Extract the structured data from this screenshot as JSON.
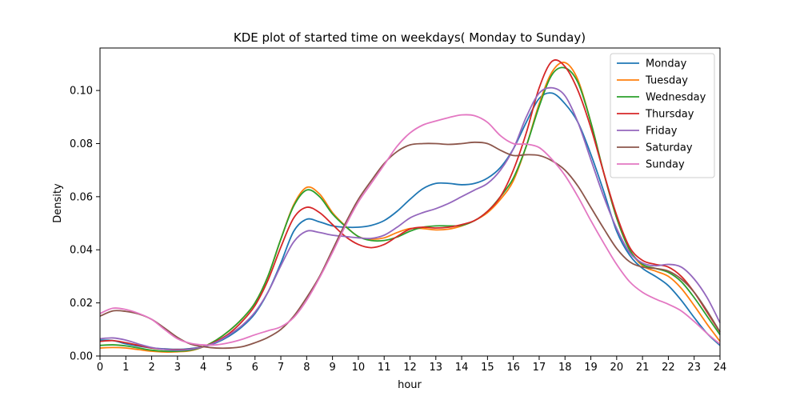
{
  "chart_data": {
    "type": "line",
    "title": "KDE plot of started time on weekdays( Monday to Sunday)",
    "xlabel": "hour",
    "ylabel": "Density",
    "xlim": [
      0,
      24
    ],
    "ylim": [
      0,
      0.116
    ],
    "xticks": [
      0,
      1,
      2,
      3,
      4,
      5,
      6,
      7,
      8,
      9,
      10,
      11,
      12,
      13,
      14,
      15,
      16,
      17,
      18,
      19,
      20,
      21,
      22,
      23,
      24
    ],
    "yticks": [
      0.0,
      0.02,
      0.04,
      0.06,
      0.08,
      0.1
    ],
    "ytick_labels": [
      "0.00",
      "0.02",
      "0.04",
      "0.06",
      "0.08",
      "0.10"
    ],
    "grid": false,
    "legend_position": "top-right",
    "x": [
      0,
      0.5,
      1,
      1.5,
      2,
      2.5,
      3,
      3.5,
      4,
      4.5,
      5,
      5.5,
      6,
      6.5,
      7,
      7.5,
      8,
      8.5,
      9,
      9.5,
      10,
      10.5,
      11,
      11.5,
      12,
      12.5,
      13,
      13.5,
      14,
      14.5,
      15,
      15.5,
      16,
      16.5,
      17,
      17.5,
      18,
      18.5,
      19,
      19.5,
      20,
      20.5,
      21,
      21.5,
      22,
      22.5,
      23,
      23.5,
      24
    ],
    "series": [
      {
        "name": "Monday",
        "color": "#1f77b4",
        "values": [
          0.006,
          0.0058,
          0.0046,
          0.0037,
          0.003,
          0.0027,
          0.0025,
          0.0028,
          0.0035,
          0.005,
          0.0075,
          0.011,
          0.016,
          0.024,
          0.035,
          0.047,
          0.0515,
          0.0505,
          0.049,
          0.0485,
          0.0485,
          0.0492,
          0.051,
          0.0545,
          0.059,
          0.063,
          0.065,
          0.065,
          0.0645,
          0.065,
          0.067,
          0.071,
          0.078,
          0.088,
          0.097,
          0.099,
          0.095,
          0.088,
          0.076,
          0.062,
          0.047,
          0.038,
          0.033,
          0.03,
          0.0265,
          0.021,
          0.0145,
          0.0085,
          0.004
        ]
      },
      {
        "name": "Tuesday",
        "color": "#ff7f0e",
        "values": [
          0.003,
          0.0032,
          0.003,
          0.0024,
          0.0018,
          0.0015,
          0.0016,
          0.002,
          0.0035,
          0.006,
          0.0095,
          0.014,
          0.02,
          0.03,
          0.044,
          0.057,
          0.0635,
          0.061,
          0.054,
          0.049,
          0.045,
          0.044,
          0.0445,
          0.0465,
          0.048,
          0.048,
          0.0475,
          0.0478,
          0.049,
          0.051,
          0.054,
          0.059,
          0.066,
          0.079,
          0.095,
          0.107,
          0.1105,
          0.104,
          0.088,
          0.069,
          0.052,
          0.04,
          0.034,
          0.032,
          0.03,
          0.0255,
          0.019,
          0.012,
          0.0055
        ]
      },
      {
        "name": "Wednesday",
        "color": "#2ca02c",
        "values": [
          0.004,
          0.0042,
          0.0038,
          0.003,
          0.0022,
          0.0018,
          0.0018,
          0.0022,
          0.0035,
          0.006,
          0.0095,
          0.014,
          0.02,
          0.03,
          0.044,
          0.0565,
          0.0625,
          0.06,
          0.0535,
          0.0488,
          0.045,
          0.0435,
          0.0435,
          0.0448,
          0.047,
          0.0485,
          0.049,
          0.049,
          0.0492,
          0.051,
          0.0545,
          0.06,
          0.067,
          0.079,
          0.094,
          0.106,
          0.1085,
          0.103,
          0.088,
          0.069,
          0.052,
          0.04,
          0.0345,
          0.033,
          0.0315,
          0.028,
          0.022,
          0.015,
          0.008
        ]
      },
      {
        "name": "Thursday",
        "color": "#d62728",
        "values": [
          0.0055,
          0.0058,
          0.005,
          0.004,
          0.003,
          0.0025,
          0.0024,
          0.0026,
          0.0035,
          0.0055,
          0.0085,
          0.013,
          0.019,
          0.0285,
          0.041,
          0.052,
          0.056,
          0.054,
          0.0495,
          0.045,
          0.042,
          0.0408,
          0.042,
          0.045,
          0.0478,
          0.0485,
          0.0482,
          0.0485,
          0.0495,
          0.051,
          0.0545,
          0.06,
          0.07,
          0.084,
          0.101,
          0.111,
          0.109,
          0.1,
          0.086,
          0.069,
          0.053,
          0.041,
          0.036,
          0.0345,
          0.0335,
          0.03,
          0.024,
          0.0165,
          0.009
        ]
      },
      {
        "name": "Friday",
        "color": "#9467bd",
        "values": [
          0.0065,
          0.0068,
          0.006,
          0.0045,
          0.0032,
          0.0025,
          0.0022,
          0.0025,
          0.0035,
          0.0052,
          0.008,
          0.0115,
          0.0165,
          0.024,
          0.034,
          0.043,
          0.047,
          0.0465,
          0.0455,
          0.045,
          0.0445,
          0.0443,
          0.0455,
          0.0485,
          0.052,
          0.054,
          0.0555,
          0.0575,
          0.06,
          0.0625,
          0.065,
          0.07,
          0.078,
          0.09,
          0.099,
          0.101,
          0.098,
          0.088,
          0.074,
          0.06,
          0.048,
          0.039,
          0.035,
          0.034,
          0.0345,
          0.0335,
          0.029,
          0.022,
          0.0125
        ]
      },
      {
        "name": "Saturday",
        "color": "#8c564b",
        "values": [
          0.015,
          0.017,
          0.0168,
          0.0158,
          0.0138,
          0.0105,
          0.007,
          0.0045,
          0.0035,
          0.003,
          0.003,
          0.0035,
          0.005,
          0.007,
          0.01,
          0.015,
          0.022,
          0.03,
          0.04,
          0.05,
          0.059,
          0.066,
          0.0725,
          0.077,
          0.0795,
          0.08,
          0.08,
          0.0797,
          0.08,
          0.0805,
          0.08,
          0.0775,
          0.0755,
          0.0758,
          0.0755,
          0.0735,
          0.07,
          0.064,
          0.056,
          0.048,
          0.0405,
          0.0355,
          0.0335,
          0.033,
          0.032,
          0.029,
          0.024,
          0.017,
          0.009
        ]
      },
      {
        "name": "Sunday",
        "color": "#e377c2",
        "values": [
          0.016,
          0.018,
          0.0175,
          0.016,
          0.0138,
          0.01,
          0.0065,
          0.0048,
          0.0042,
          0.0042,
          0.005,
          0.0063,
          0.008,
          0.0095,
          0.011,
          0.0145,
          0.021,
          0.0295,
          0.039,
          0.049,
          0.058,
          0.065,
          0.072,
          0.079,
          0.084,
          0.087,
          0.0885,
          0.0898,
          0.0908,
          0.0905,
          0.088,
          0.083,
          0.08,
          0.0798,
          0.0785,
          0.074,
          0.068,
          0.06,
          0.051,
          0.0425,
          0.0345,
          0.028,
          0.024,
          0.0215,
          0.0195,
          0.017,
          0.013,
          0.0085,
          0.0045
        ]
      }
    ]
  }
}
